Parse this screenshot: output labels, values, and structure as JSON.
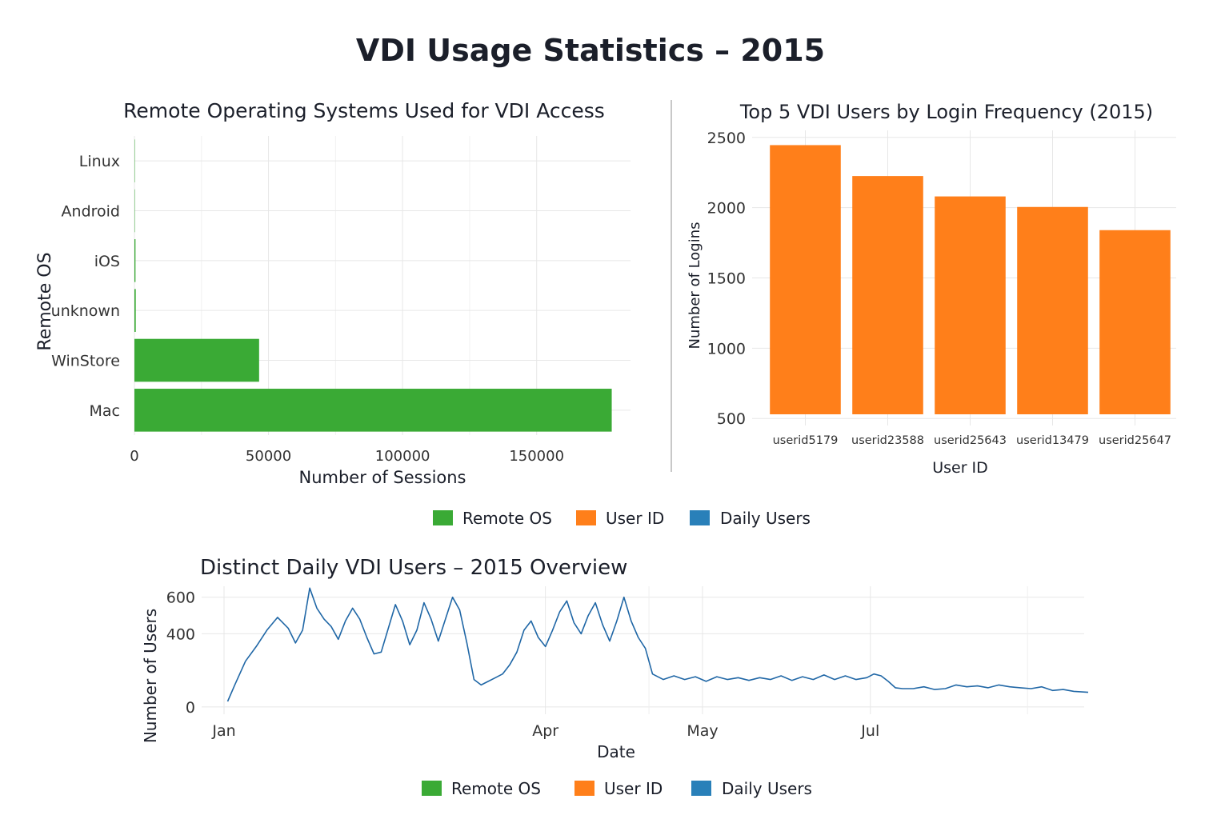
{
  "page_title": "VDI Usage Statistics – 2015",
  "legend": [
    {
      "label": "Remote OS",
      "color": "#3aaa35"
    },
    {
      "label": "User ID",
      "color": "#ff7f1a"
    },
    {
      "label": "Daily Users",
      "color": "#2980b9"
    }
  ],
  "chart_data": [
    {
      "type": "bar",
      "orientation": "horizontal",
      "title": "Remote Operating Systems Used for VDI Access",
      "xlabel": "Number of Sessions",
      "ylabel": "Remote OS",
      "categories": [
        "Linux",
        "Android",
        "iOS",
        "unknown",
        "WinStore",
        "Mac"
      ],
      "values": [
        30,
        60,
        400,
        500,
        46500,
        178000
      ],
      "xlim": [
        0,
        185000
      ],
      "xticks": [
        "0",
        "50000",
        "100000",
        "150000"
      ],
      "xtick_values": [
        0,
        50000,
        100000,
        150000
      ],
      "color": "#3aaa35",
      "grid": true
    },
    {
      "type": "bar",
      "title": "Top 5 VDI Users by Login Frequency (2015)",
      "xlabel": "User ID",
      "ylabel": "Number of Logins",
      "categories": [
        "userid5179",
        "userid23588",
        "userid25643",
        "userid13479",
        "userid25647"
      ],
      "values": [
        2445,
        2225,
        2080,
        2005,
        1840
      ],
      "ylim": [
        450,
        2550
      ],
      "yticks": [
        "500",
        "1000",
        "1500",
        "2000",
        "2500"
      ],
      "ytick_values": [
        500,
        1000,
        1500,
        2000,
        2500
      ],
      "color": "#ff7f1a",
      "grid": true
    },
    {
      "type": "line",
      "title": "Distinct Daily VDI Users – 2015 Overview",
      "xlabel": "Date",
      "ylabel": "Number of Users",
      "x_start": "2015-01-02",
      "x_end": "2015-08-31",
      "xticks": [
        "Jan",
        "Apr",
        "May",
        "Jul"
      ],
      "xtick_dates": [
        "2015-01-01",
        "2015-04-01",
        "2015-05-15",
        "2015-07-01"
      ],
      "ylim": [
        -40,
        660
      ],
      "yticks": [
        "0",
        "400",
        "600"
      ],
      "ytick_values": [
        0,
        400,
        600
      ],
      "color": "#2067a6",
      "grid": true,
      "series": [
        {
          "points": [
            [
              "2015-01-02",
              30
            ],
            [
              "2015-01-04",
              120
            ],
            [
              "2015-01-07",
              250
            ],
            [
              "2015-01-10",
              330
            ],
            [
              "2015-01-13",
              420
            ],
            [
              "2015-01-16",
              490
            ],
            [
              "2015-01-19",
              430
            ],
            [
              "2015-01-21",
              350
            ],
            [
              "2015-01-23",
              420
            ],
            [
              "2015-01-25",
              650
            ],
            [
              "2015-01-27",
              540
            ],
            [
              "2015-01-29",
              480
            ],
            [
              "2015-01-31",
              440
            ],
            [
              "2015-02-02",
              370
            ],
            [
              "2015-02-04",
              470
            ],
            [
              "2015-02-06",
              540
            ],
            [
              "2015-02-08",
              480
            ],
            [
              "2015-02-10",
              380
            ],
            [
              "2015-02-12",
              290
            ],
            [
              "2015-02-14",
              300
            ],
            [
              "2015-02-16",
              430
            ],
            [
              "2015-02-18",
              560
            ],
            [
              "2015-02-20",
              470
            ],
            [
              "2015-02-22",
              340
            ],
            [
              "2015-02-24",
              420
            ],
            [
              "2015-02-26",
              570
            ],
            [
              "2015-02-28",
              480
            ],
            [
              "2015-03-02",
              360
            ],
            [
              "2015-03-04",
              480
            ],
            [
              "2015-03-06",
              600
            ],
            [
              "2015-03-08",
              530
            ],
            [
              "2015-03-10",
              350
            ],
            [
              "2015-03-12",
              150
            ],
            [
              "2015-03-14",
              120
            ],
            [
              "2015-03-16",
              140
            ],
            [
              "2015-03-18",
              160
            ],
            [
              "2015-03-20",
              180
            ],
            [
              "2015-03-22",
              230
            ],
            [
              "2015-03-24",
              300
            ],
            [
              "2015-03-26",
              420
            ],
            [
              "2015-03-28",
              470
            ],
            [
              "2015-03-30",
              380
            ],
            [
              "2015-04-01",
              330
            ],
            [
              "2015-04-03",
              420
            ],
            [
              "2015-04-05",
              520
            ],
            [
              "2015-04-07",
              580
            ],
            [
              "2015-04-09",
              460
            ],
            [
              "2015-04-11",
              400
            ],
            [
              "2015-04-13",
              500
            ],
            [
              "2015-04-15",
              570
            ],
            [
              "2015-04-17",
              450
            ],
            [
              "2015-04-19",
              360
            ],
            [
              "2015-04-21",
              470
            ],
            [
              "2015-04-23",
              600
            ],
            [
              "2015-04-25",
              470
            ],
            [
              "2015-04-27",
              380
            ],
            [
              "2015-04-29",
              320
            ],
            [
              "2015-05-01",
              180
            ],
            [
              "2015-05-04",
              150
            ],
            [
              "2015-05-07",
              170
            ],
            [
              "2015-05-10",
              150
            ],
            [
              "2015-05-13",
              165
            ],
            [
              "2015-05-16",
              140
            ],
            [
              "2015-05-19",
              165
            ],
            [
              "2015-05-22",
              150
            ],
            [
              "2015-05-25",
              160
            ],
            [
              "2015-05-28",
              145
            ],
            [
              "2015-05-31",
              160
            ],
            [
              "2015-06-03",
              150
            ],
            [
              "2015-06-06",
              170
            ],
            [
              "2015-06-09",
              145
            ],
            [
              "2015-06-12",
              165
            ],
            [
              "2015-06-15",
              150
            ],
            [
              "2015-06-18",
              175
            ],
            [
              "2015-06-21",
              150
            ],
            [
              "2015-06-24",
              170
            ],
            [
              "2015-06-27",
              150
            ],
            [
              "2015-06-30",
              160
            ],
            [
              "2015-07-02",
              180
            ],
            [
              "2015-07-04",
              170
            ],
            [
              "2015-07-06",
              140
            ],
            [
              "2015-07-08",
              105
            ],
            [
              "2015-07-10",
              100
            ],
            [
              "2015-07-13",
              100
            ],
            [
              "2015-07-16",
              110
            ],
            [
              "2015-07-19",
              95
            ],
            [
              "2015-07-22",
              100
            ],
            [
              "2015-07-25",
              120
            ],
            [
              "2015-07-28",
              110
            ],
            [
              "2015-07-31",
              115
            ],
            [
              "2015-08-03",
              105
            ],
            [
              "2015-08-06",
              120
            ],
            [
              "2015-08-09",
              110
            ],
            [
              "2015-08-12",
              105
            ],
            [
              "2015-08-15",
              100
            ],
            [
              "2015-08-18",
              110
            ],
            [
              "2015-08-21",
              90
            ],
            [
              "2015-08-24",
              95
            ],
            [
              "2015-08-27",
              85
            ],
            [
              "2015-08-31",
              80
            ]
          ]
        }
      ]
    }
  ]
}
